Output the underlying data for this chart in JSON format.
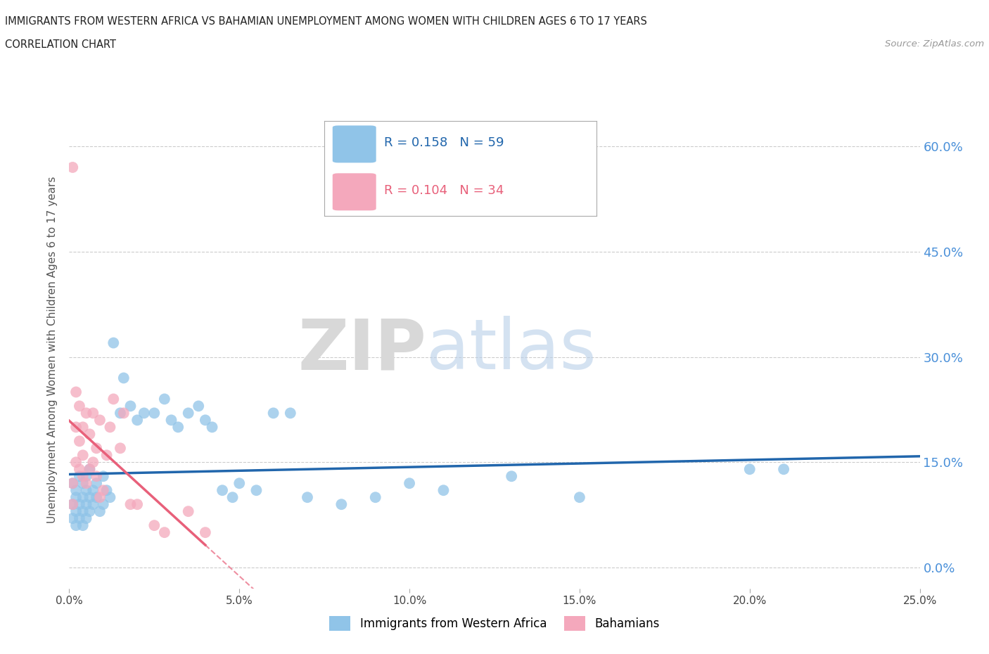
{
  "title_line1": "IMMIGRANTS FROM WESTERN AFRICA VS BAHAMIAN UNEMPLOYMENT AMONG WOMEN WITH CHILDREN AGES 6 TO 17 YEARS",
  "title_line2": "CORRELATION CHART",
  "source_text": "Source: ZipAtlas.com",
  "ylabel": "Unemployment Among Women with Children Ages 6 to 17 years",
  "xlim": [
    0.0,
    0.25
  ],
  "ylim": [
    -0.03,
    0.65
  ],
  "yticks": [
    0.0,
    0.15,
    0.3,
    0.45,
    0.6
  ],
  "ytick_labels": [
    "0.0%",
    "15.0%",
    "30.0%",
    "45.0%",
    "60.0%"
  ],
  "xticks": [
    0.0,
    0.05,
    0.1,
    0.15,
    0.2,
    0.25
  ],
  "xtick_labels": [
    "0.0%",
    "5.0%",
    "10.0%",
    "15.0%",
    "20.0%",
    "25.0%"
  ],
  "legend_r1": "R = 0.158",
  "legend_n1": "N = 59",
  "legend_r2": "R = 0.104",
  "legend_n2": "N = 34",
  "color_blue": "#90c4e8",
  "color_pink": "#f4a8bc",
  "color_blue_line": "#2166ac",
  "color_pink_line": "#e8607a",
  "color_ytick": "#4a90d9",
  "watermark_zip": "ZIP",
  "watermark_atlas": "atlas",
  "blue_scatter_x": [
    0.001,
    0.001,
    0.001,
    0.002,
    0.002,
    0.002,
    0.002,
    0.003,
    0.003,
    0.003,
    0.004,
    0.004,
    0.004,
    0.004,
    0.005,
    0.005,
    0.005,
    0.005,
    0.006,
    0.006,
    0.006,
    0.007,
    0.007,
    0.008,
    0.008,
    0.009,
    0.01,
    0.01,
    0.011,
    0.012,
    0.013,
    0.015,
    0.016,
    0.018,
    0.02,
    0.022,
    0.025,
    0.028,
    0.03,
    0.032,
    0.035,
    0.038,
    0.04,
    0.042,
    0.045,
    0.048,
    0.05,
    0.055,
    0.06,
    0.065,
    0.07,
    0.08,
    0.09,
    0.1,
    0.11,
    0.13,
    0.15,
    0.2,
    0.21
  ],
  "blue_scatter_y": [
    0.09,
    0.07,
    0.12,
    0.08,
    0.1,
    0.06,
    0.11,
    0.09,
    0.07,
    0.13,
    0.08,
    0.1,
    0.06,
    0.12,
    0.09,
    0.11,
    0.07,
    0.13,
    0.1,
    0.08,
    0.14,
    0.09,
    0.11,
    0.12,
    0.1,
    0.08,
    0.13,
    0.09,
    0.11,
    0.1,
    0.32,
    0.22,
    0.27,
    0.23,
    0.21,
    0.22,
    0.22,
    0.24,
    0.21,
    0.2,
    0.22,
    0.23,
    0.21,
    0.2,
    0.11,
    0.1,
    0.12,
    0.11,
    0.22,
    0.22,
    0.1,
    0.09,
    0.1,
    0.12,
    0.11,
    0.13,
    0.1,
    0.14,
    0.14
  ],
  "pink_scatter_x": [
    0.001,
    0.001,
    0.001,
    0.002,
    0.002,
    0.002,
    0.003,
    0.003,
    0.003,
    0.004,
    0.004,
    0.004,
    0.005,
    0.005,
    0.006,
    0.006,
    0.007,
    0.007,
    0.008,
    0.008,
    0.009,
    0.009,
    0.01,
    0.011,
    0.012,
    0.013,
    0.015,
    0.016,
    0.018,
    0.02,
    0.025,
    0.028,
    0.035,
    0.04
  ],
  "pink_scatter_y": [
    0.57,
    0.09,
    0.12,
    0.25,
    0.2,
    0.15,
    0.23,
    0.18,
    0.14,
    0.2,
    0.16,
    0.13,
    0.22,
    0.12,
    0.19,
    0.14,
    0.15,
    0.22,
    0.17,
    0.13,
    0.1,
    0.21,
    0.11,
    0.16,
    0.2,
    0.24,
    0.17,
    0.22,
    0.09,
    0.09,
    0.06,
    0.05,
    0.08,
    0.05
  ]
}
